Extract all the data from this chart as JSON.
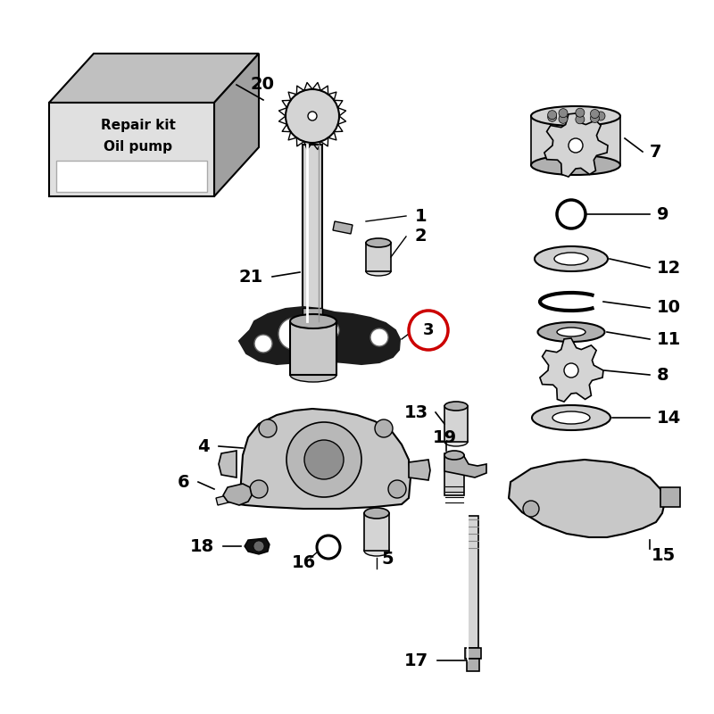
{
  "background_color": "#ffffff",
  "part_color_light": "#d4d4d4",
  "part_color_dark": "#888888",
  "part_color_black": "#1a1a1a",
  "part_color_mid": "#b0b0b0",
  "highlight_circle_color": "#cc0000",
  "figsize": [
    8.0,
    8.0
  ],
  "dpi": 100
}
